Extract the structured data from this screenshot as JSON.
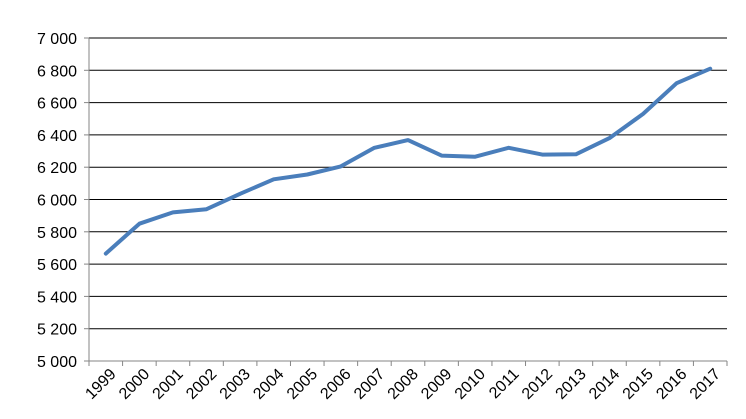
{
  "chart_data": {
    "type": "line",
    "title": "",
    "xlabel": "",
    "ylabel": "",
    "x": [
      "1999",
      "2000",
      "2001",
      "2002",
      "2003",
      "2004",
      "2005",
      "2006",
      "2007",
      "2008",
      "2009",
      "2010",
      "2011",
      "2012",
      "2013",
      "2014",
      "2015",
      "2016",
      "2017"
    ],
    "y_tick_labels": [
      "5 000",
      "5 200",
      "5 400",
      "5 600",
      "5 800",
      "6 000",
      "6 200",
      "6 400",
      "6 600",
      "6 800",
      "7 000"
    ],
    "y_ticks": [
      5000,
      5200,
      5400,
      5600,
      5800,
      6000,
      6200,
      6400,
      6600,
      6800,
      7000
    ],
    "ylim": [
      5000,
      7000
    ],
    "grid": true,
    "legend": "none",
    "series": [
      {
        "color": "#4a7ebb",
        "values": [
          5665,
          5850,
          5920,
          5940,
          6035,
          6125,
          6155,
          6205,
          6320,
          6368,
          6272,
          6265,
          6320,
          6278,
          6280,
          6380,
          6530,
          6720,
          6810
        ]
      }
    ]
  }
}
